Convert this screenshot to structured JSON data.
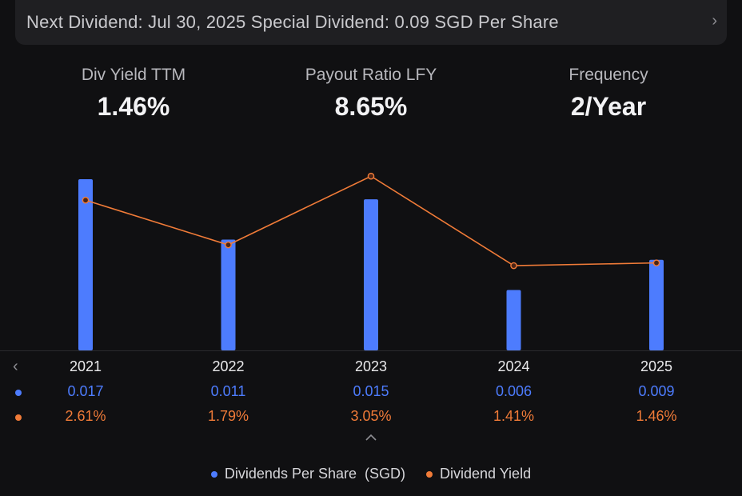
{
  "banner": {
    "text": "Next Dividend: Jul 30, 2025 Special Dividend: 0.09 SGD Per Share",
    "arrow": "›"
  },
  "stats": [
    {
      "label": "Div Yield TTM",
      "value": "1.46%"
    },
    {
      "label": "Payout Ratio LFY",
      "value": "8.65%"
    },
    {
      "label": "Frequency",
      "value": "2/Year"
    }
  ],
  "colors": {
    "bar": "#4d7cfe",
    "line": "#f07b38",
    "background": "#101012"
  },
  "nav": {
    "prev_icon": "chevron-left-icon",
    "expand_icon": "chevron-up-icon"
  },
  "chart_data": {
    "type": "bar",
    "categories": [
      "2021",
      "2022",
      "2023",
      "2024",
      "2025"
    ],
    "series": [
      {
        "name": "Dividends Per Share  (SGD)",
        "type": "bar",
        "values": [
          0.017,
          0.011,
          0.015,
          0.006,
          0.009
        ],
        "labels": [
          "0.017",
          "0.011",
          "0.015",
          "0.006",
          "0.009"
        ],
        "color": "#4d7cfe"
      },
      {
        "name": "Dividend Yield",
        "type": "line",
        "values": [
          2.61,
          1.79,
          3.05,
          1.41,
          1.46
        ],
        "labels": [
          "2.61%",
          "1.79%",
          "3.05%",
          "1.41%",
          "1.46%"
        ],
        "color": "#f07b38"
      }
    ],
    "legend_position": "bottom",
    "grid": false
  }
}
